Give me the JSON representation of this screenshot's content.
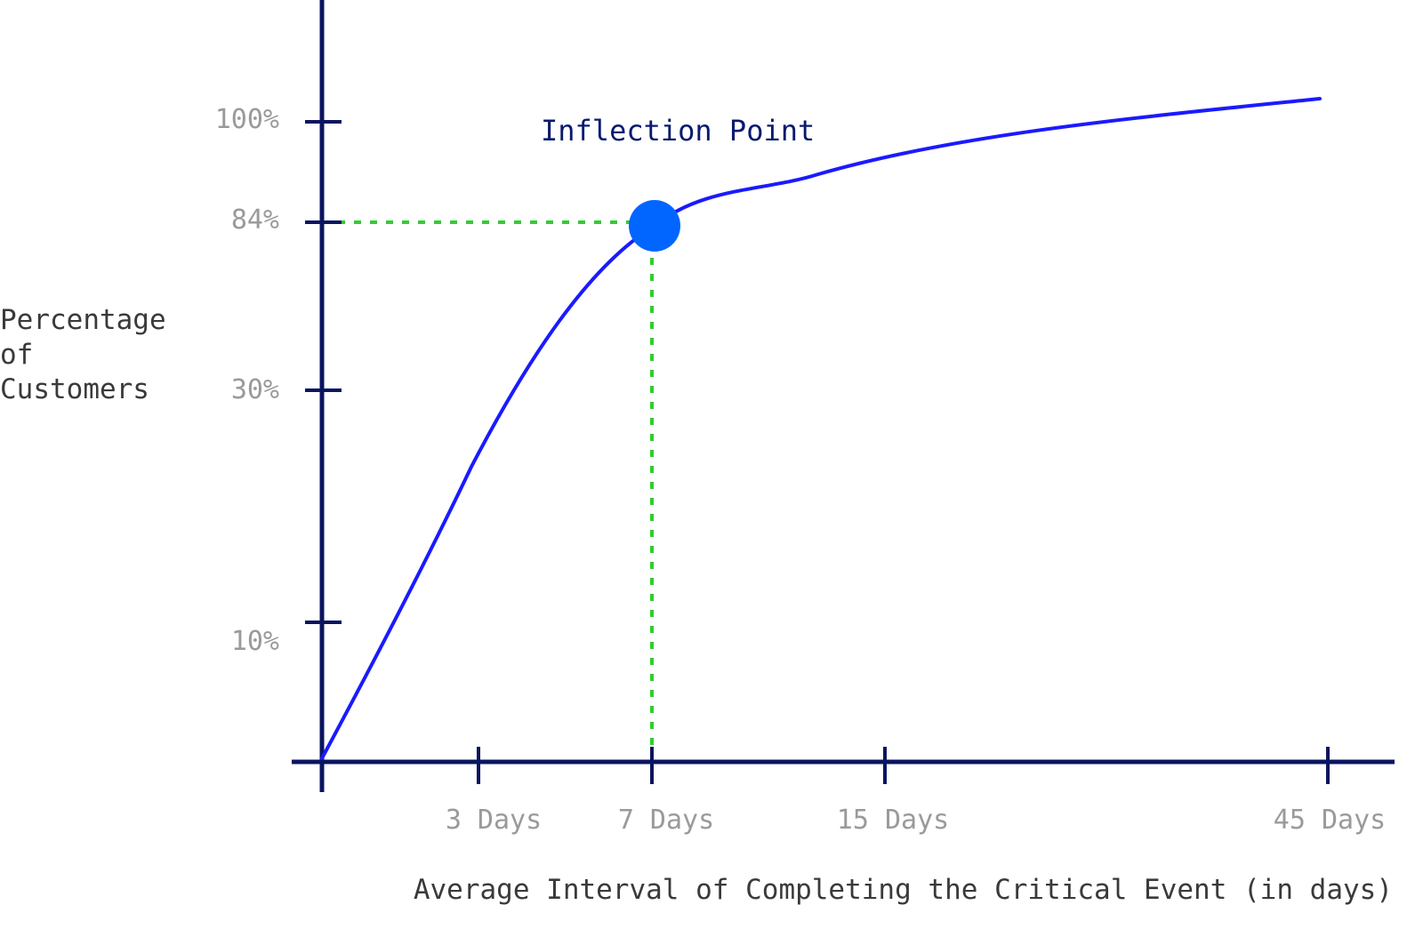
{
  "colors": {
    "axis": "#0a1560",
    "curve": "#1a1aff",
    "highlight_point": "#0066ff",
    "guide_lines": "#33cc33",
    "tick_label": "#9a9a9a",
    "axis_title": "#3a3a3a",
    "annotation": "#0a1a6e"
  },
  "chart_data": {
    "type": "line",
    "title": "",
    "xlabel": "Average Interval of Completing the Critical Event (in days)",
    "ylabel_lines": [
      "Percentage",
      "of",
      "Customers"
    ],
    "grid": false,
    "legend": "none",
    "x_categories": [
      "3 Days",
      "7 Days",
      "15 Days",
      "45 Days"
    ],
    "y_tick_labels": [
      "10%",
      "30%",
      "84%",
      "100%"
    ],
    "series": [
      {
        "points": [
          {
            "x": "origin",
            "y": "0%"
          },
          {
            "x": "3 Days",
            "y": "~20%"
          },
          {
            "x": "7 Days",
            "y": "84%"
          },
          {
            "x": "15 Days",
            "y": "~92%"
          },
          {
            "x": "45 Days",
            "y": "~102%"
          }
        ]
      }
    ],
    "highlight": {
      "x": "7 Days",
      "y": "84%",
      "label": "Inflection Point"
    }
  }
}
